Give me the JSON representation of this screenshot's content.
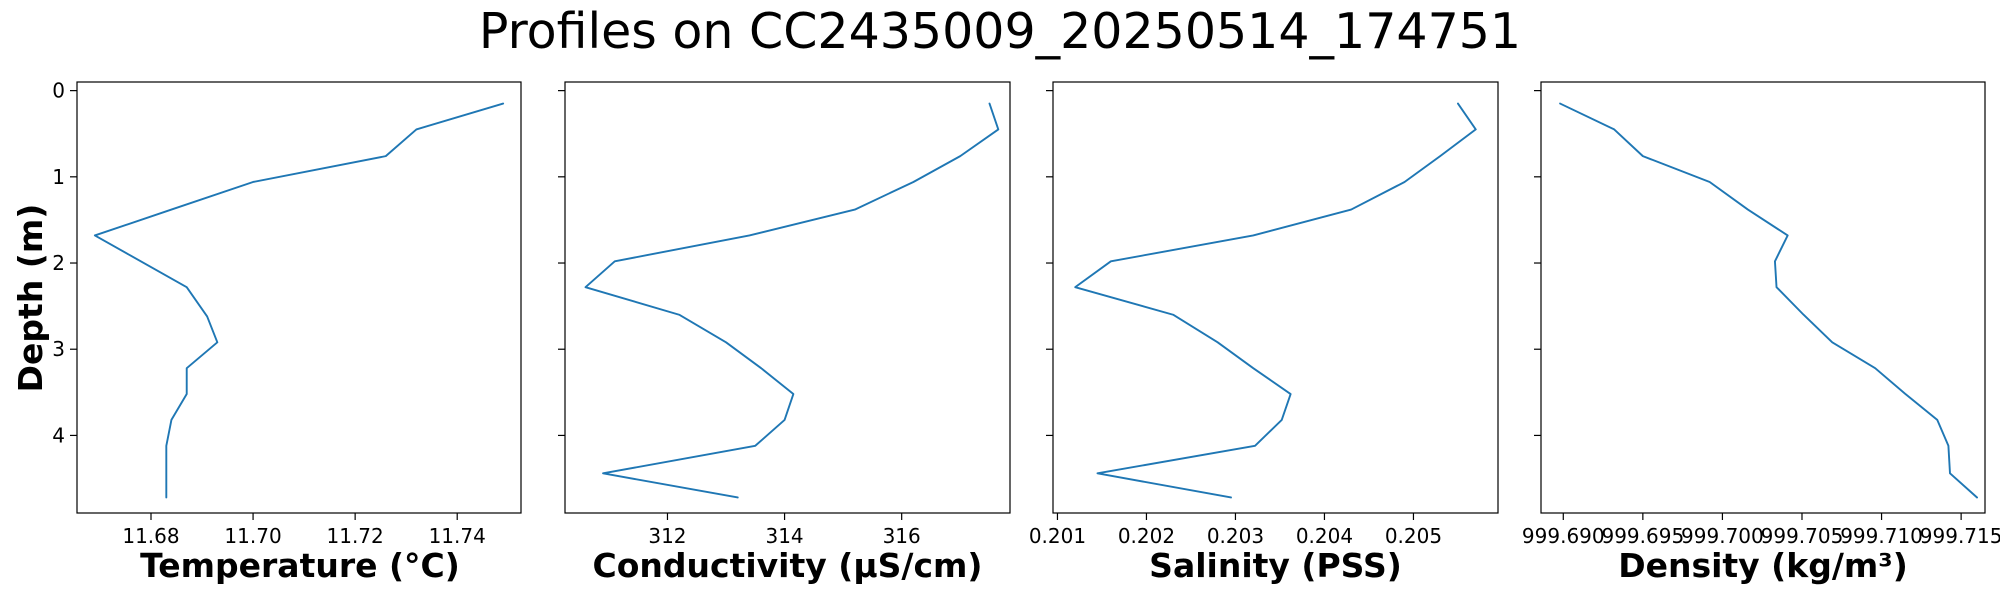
{
  "figure": {
    "title": "Profiles on CC2435009_20250514_174751",
    "ylabel": "Depth (m)",
    "line_color": "#1f77b4"
  },
  "chart_data": [
    {
      "type": "line",
      "xlabel": "Temperature (°C)",
      "ylabel": "Depth (m)",
      "xlim": [
        11.6655,
        11.7525
      ],
      "ylim": [
        4.9,
        -0.1
      ],
      "y_inverted": true,
      "grid": false,
      "x_ticks": [
        11.68,
        11.7,
        11.72,
        11.74
      ],
      "x_tick_labels": [
        "11.68",
        "11.70",
        "11.72",
        "11.74"
      ],
      "y_ticks": [
        0,
        1,
        2,
        3,
        4
      ],
      "y_tick_labels": [
        "0",
        "1",
        "2",
        "3",
        "4"
      ],
      "series": [
        {
          "points": [
            [
              11.749,
              0.15
            ],
            [
              11.732,
              0.45
            ],
            [
              11.726,
              0.76
            ],
            [
              11.7,
              1.06
            ],
            [
              11.684,
              1.38
            ],
            [
              11.669,
              1.68
            ],
            [
              11.687,
              2.28
            ],
            [
              11.691,
              2.62
            ],
            [
              11.693,
              2.92
            ],
            [
              11.687,
              3.22
            ],
            [
              11.687,
              3.52
            ],
            [
              11.684,
              3.82
            ],
            [
              11.683,
              4.12
            ],
            [
              11.683,
              4.42
            ],
            [
              11.683,
              4.72
            ]
          ]
        }
      ]
    },
    {
      "type": "line",
      "xlabel": "Conductivity (µS/cm)",
      "ylabel": "",
      "xlim": [
        310.25,
        317.85
      ],
      "ylim": [
        4.9,
        -0.1
      ],
      "y_inverted": true,
      "grid": false,
      "x_ticks": [
        312,
        314,
        316
      ],
      "x_tick_labels": [
        "312",
        "314",
        "316"
      ],
      "y_ticks": [
        0,
        1,
        2,
        3,
        4
      ],
      "y_tick_labels": [],
      "series": [
        {
          "points": [
            [
              317.5,
              0.15
            ],
            [
              317.65,
              0.45
            ],
            [
              317.0,
              0.76
            ],
            [
              316.2,
              1.06
            ],
            [
              315.2,
              1.38
            ],
            [
              313.4,
              1.68
            ],
            [
              311.1,
              1.98
            ],
            [
              310.6,
              2.28
            ],
            [
              312.2,
              2.6
            ],
            [
              313.0,
              2.92
            ],
            [
              313.6,
              3.22
            ],
            [
              314.15,
              3.52
            ],
            [
              314.0,
              3.82
            ],
            [
              313.5,
              4.12
            ],
            [
              310.9,
              4.44
            ],
            [
              313.2,
              4.72
            ]
          ]
        }
      ]
    },
    {
      "type": "line",
      "xlabel": "Salinity (PSS)",
      "ylabel": "",
      "xlim": [
        0.20095,
        0.20595
      ],
      "ylim": [
        4.9,
        -0.1
      ],
      "y_inverted": true,
      "grid": false,
      "x_ticks": [
        0.201,
        0.202,
        0.203,
        0.204,
        0.205
      ],
      "x_tick_labels": [
        "0.201",
        "0.202",
        "0.203",
        "0.204",
        "0.205"
      ],
      "y_ticks": [
        0,
        1,
        2,
        3,
        4
      ],
      "y_tick_labels": [],
      "series": [
        {
          "points": [
            [
              0.2055,
              0.15
            ],
            [
              0.2057,
              0.45
            ],
            [
              0.2053,
              0.76
            ],
            [
              0.2049,
              1.06
            ],
            [
              0.2043,
              1.38
            ],
            [
              0.2032,
              1.68
            ],
            [
              0.2016,
              1.98
            ],
            [
              0.2012,
              2.28
            ],
            [
              0.2023,
              2.6
            ],
            [
              0.2028,
              2.92
            ],
            [
              0.2032,
              3.22
            ],
            [
              0.20362,
              3.52
            ],
            [
              0.20352,
              3.82
            ],
            [
              0.20322,
              4.12
            ],
            [
              0.20145,
              4.44
            ],
            [
              0.20295,
              4.72
            ]
          ]
        }
      ]
    },
    {
      "type": "line",
      "xlabel": "Density (kg/m³)",
      "ylabel": "",
      "xlim": [
        999.6886,
        999.7165
      ],
      "ylim": [
        4.9,
        -0.1
      ],
      "y_inverted": true,
      "grid": false,
      "x_ticks": [
        999.69,
        999.695,
        999.7,
        999.705,
        999.71,
        999.715
      ],
      "x_tick_labels": [
        "999.690",
        "999.695",
        "999.700",
        "999.705",
        "999.710",
        "999.715"
      ],
      "y_ticks": [
        0,
        1,
        2,
        3,
        4
      ],
      "y_tick_labels": [],
      "series": [
        {
          "points": [
            [
              999.6898,
              0.15
            ],
            [
              999.6932,
              0.45
            ],
            [
              999.695,
              0.76
            ],
            [
              999.6992,
              1.06
            ],
            [
              999.7016,
              1.38
            ],
            [
              999.7041,
              1.68
            ],
            [
              999.7033,
              1.98
            ],
            [
              999.7034,
              2.28
            ],
            [
              999.7051,
              2.6
            ],
            [
              999.7069,
              2.92
            ],
            [
              999.7096,
              3.22
            ],
            [
              999.7115,
              3.52
            ],
            [
              999.7135,
              3.82
            ],
            [
              999.7142,
              4.12
            ],
            [
              999.7143,
              4.44
            ],
            [
              999.716,
              4.72
            ]
          ]
        }
      ]
    }
  ]
}
